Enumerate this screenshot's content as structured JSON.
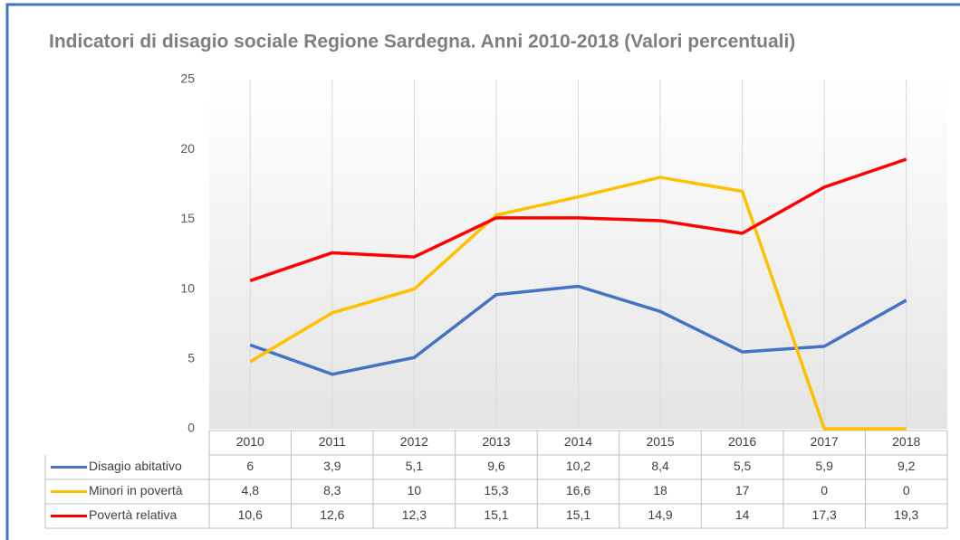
{
  "chart_data": {
    "type": "line",
    "title": "Indicatori di disagio sociale Regione Sardegna. Anni 2010-2018 (Valori percentuali)",
    "categories": [
      "2010",
      "2011",
      "2012",
      "2013",
      "2014",
      "2015",
      "2016",
      "2017",
      "2018"
    ],
    "series": [
      {
        "name": "Disagio abitativo",
        "color": "#4472c4",
        "values": [
          6,
          3.9,
          5.1,
          9.6,
          10.2,
          8.4,
          5.5,
          5.9,
          9.2
        ],
        "value_labels": [
          "6",
          "3,9",
          "5,1",
          "9,6",
          "10,2",
          "8,4",
          "5,5",
          "5,9",
          "9,2"
        ]
      },
      {
        "name": "Minori in povertà",
        "color": "#ffc000",
        "values": [
          4.8,
          8.3,
          10,
          15.3,
          16.6,
          18,
          17,
          0,
          0
        ],
        "value_labels": [
          "4,8",
          "8,3",
          "10",
          "15,3",
          "16,6",
          "18",
          "17",
          "0",
          "0"
        ]
      },
      {
        "name": "Povertà  relativa",
        "color": "#ff0000",
        "values": [
          10.6,
          12.6,
          12.3,
          15.1,
          15.1,
          14.9,
          14,
          17.3,
          19.3
        ],
        "value_labels": [
          "10,6",
          "12,6",
          "12,3",
          "15,1",
          "15,1",
          "14,9",
          "14",
          "17,3",
          "19,3"
        ]
      }
    ],
    "ylim": [
      0,
      25
    ],
    "yticks": [
      0,
      5,
      10,
      15,
      20,
      25
    ],
    "grid": true
  }
}
